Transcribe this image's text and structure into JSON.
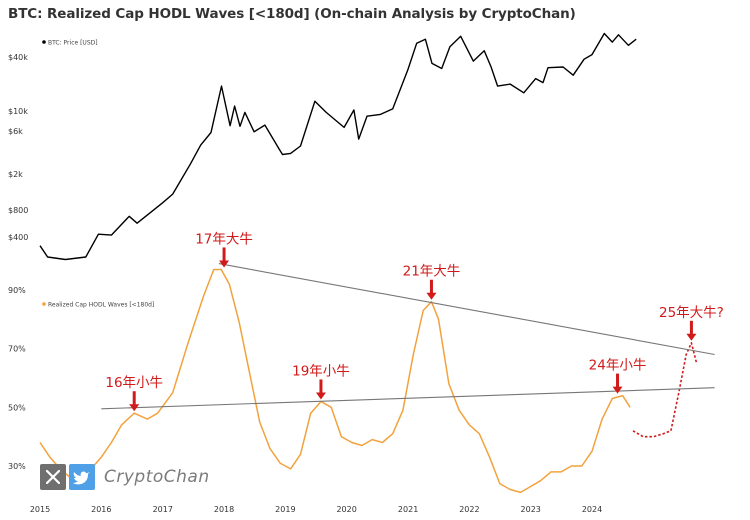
{
  "chart_data": [
    {
      "type": "line",
      "panel": "top",
      "title": "BTC: Realized Cap HODL Waves [<180d] (On-chain Analysis by CryptoChan)",
      "scale": "log",
      "y_ticks": [
        "$40k",
        "$10k",
        "$6k",
        "$2k",
        "$800",
        "$400"
      ],
      "y_tick_values": [
        40000,
        10000,
        6000,
        2000,
        800,
        400
      ],
      "series": [
        {
          "name": "BTC: Price [USD]",
          "color": "#000000",
          "x": [
            "2015-01-01",
            "2015-02-15",
            "2015-06-01",
            "2015-10-01",
            "2015-12-15",
            "2016-03-01",
            "2016-06-15",
            "2016-08-01",
            "2016-12-31",
            "2017-03-01",
            "2017-06-15",
            "2017-08-15",
            "2017-10-15",
            "2017-12-17",
            "2018-02-06",
            "2018-03-05",
            "2018-04-06",
            "2018-05-05",
            "2018-06-29",
            "2018-09-01",
            "2018-11-25",
            "2018-12-15",
            "2019-02-01",
            "2019-04-01",
            "2019-06-26",
            "2019-09-01",
            "2019-12-17",
            "2020-02-13",
            "2020-03-13",
            "2020-05-01",
            "2020-07-20",
            "2020-10-01",
            "2020-12-31",
            "2021-02-21",
            "2021-04-14",
            "2021-05-23",
            "2021-07-20",
            "2021-09-07",
            "2021-11-10",
            "2022-01-24",
            "2022-03-30",
            "2022-05-10",
            "2022-06-18",
            "2022-09-01",
            "2022-11-21",
            "2023-01-31",
            "2023-03-15",
            "2023-04-14",
            "2023-07-13",
            "2023-09-11",
            "2023-11-15",
            "2024-01-01",
            "2024-03-14",
            "2024-05-01",
            "2024-06-07",
            "2024-08-05",
            "2024-09-20"
          ],
          "y": [
            320,
            240,
            225,
            240,
            430,
            420,
            680,
            570,
            960,
            1200,
            2600,
            4200,
            5800,
            19000,
            6900,
            11400,
            6800,
            9700,
            5900,
            7000,
            3800,
            3300,
            3400,
            4100,
            12900,
            9700,
            6600,
            10300,
            4900,
            8800,
            9200,
            10600,
            29000,
            57000,
            63000,
            34000,
            29800,
            52000,
            68000,
            36000,
            47000,
            31000,
            19000,
            20000,
            16000,
            23000,
            20800,
            30400,
            31000,
            25100,
            37800,
            42500,
            73000,
            58500,
            70500,
            54000,
            63000
          ]
        }
      ]
    },
    {
      "type": "line",
      "panel": "bottom",
      "y_ticks": [
        "90%",
        "70%",
        "50%",
        "30%"
      ],
      "y_tick_values": [
        90,
        70,
        50,
        30
      ],
      "x_ticks": [
        "2015",
        "2016",
        "2017",
        "2018",
        "2019",
        "2020",
        "2021",
        "2022",
        "2023",
        "2024"
      ],
      "series": [
        {
          "name": "Realized Cap HODL Waves [<180d]",
          "color": "#f2a23c",
          "x": [
            "2015-01-01",
            "2015-03-01",
            "2015-05-01",
            "2015-07-01",
            "2015-09-01",
            "2015-11-01",
            "2016-01-01",
            "2016-03-01",
            "2016-05-01",
            "2016-07-15",
            "2016-10-01",
            "2016-12-01",
            "2017-03-01",
            "2017-06-01",
            "2017-09-01",
            "2017-11-01",
            "2017-12-15",
            "2018-02-01",
            "2018-04-01",
            "2018-06-01",
            "2018-08-01",
            "2018-10-01",
            "2018-12-01",
            "2019-02-01",
            "2019-04-01",
            "2019-06-01",
            "2019-08-01",
            "2019-10-01",
            "2019-12-01",
            "2020-02-01",
            "2020-04-01",
            "2020-06-01",
            "2020-08-01",
            "2020-10-01",
            "2020-12-01",
            "2021-02-01",
            "2021-04-01",
            "2021-05-20",
            "2021-07-01",
            "2021-09-01",
            "2021-11-01",
            "2022-01-01",
            "2022-03-01",
            "2022-05-01",
            "2022-07-01",
            "2022-09-01",
            "2022-11-01",
            "2023-01-01",
            "2023-03-01",
            "2023-05-01",
            "2023-07-01",
            "2023-09-01",
            "2023-11-01",
            "2024-01-01",
            "2024-03-01",
            "2024-05-01",
            "2024-07-01",
            "2024-08-15"
          ],
          "y": [
            38,
            33,
            29,
            26,
            27,
            29,
            33,
            38,
            44,
            48,
            46,
            48,
            55,
            72,
            88,
            97,
            97,
            92,
            79,
            62,
            45,
            36,
            31,
            29,
            34,
            48,
            52,
            50,
            40,
            38,
            37,
            39,
            38,
            41,
            49,
            68,
            83,
            86,
            80,
            58,
            49,
            44,
            41,
            33,
            24,
            22,
            21,
            23,
            25,
            28,
            28,
            30,
            30,
            35,
            46,
            53,
            54,
            50
          ]
        },
        {
          "name": "projection",
          "color": "#d11a1a",
          "x": [
            "2024-09-01",
            "2024-11-01",
            "2025-01-01",
            "2025-03-01",
            "2025-04-15",
            "2025-06-01",
            "2025-07-15",
            "2025-08-15",
            "2025-09-15"
          ],
          "y": [
            42,
            40,
            40,
            41,
            42,
            55,
            68,
            72,
            65
          ]
        },
        {
          "name": "upper-trendline",
          "color": "#777777",
          "x": [
            "2017-12-01",
            "2025-12-31"
          ],
          "y": [
            99,
            68
          ]
        },
        {
          "name": "lower-trendline",
          "color": "#777777",
          "x": [
            "2016-01-01",
            "2025-12-31"
          ],
          "y": [
            49.5,
            56.7
          ]
        }
      ],
      "annotations": [
        "16年小牛",
        "17年大牛",
        "19年小牛",
        "21年大牛",
        "24年小牛",
        "25年大牛?"
      ],
      "annotation_points": [
        {
          "x": "2016-07-15",
          "y": 48
        },
        {
          "x": "2018-01-01",
          "y": 97
        },
        {
          "x": "2019-08-01",
          "y": 52
        },
        {
          "x": "2021-05-20",
          "y": 86
        },
        {
          "x": "2024-06-01",
          "y": 54
        },
        {
          "x": "2025-08-15",
          "y": 72
        }
      ]
    }
  ],
  "watermark": {
    "text": "CryptoChan",
    "icons": [
      "x-logo-icon",
      "bird-logo-icon"
    ]
  }
}
